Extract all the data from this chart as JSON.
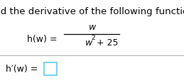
{
  "title": "Find the derivative of the following function.",
  "title_fontsize": 9.5,
  "background_color": "#ffffff",
  "hw_label": "h(w) =",
  "numerator": "w",
  "denominator_part1": "w",
  "denominator_sup": "2",
  "denominator_part2": " + 25",
  "derivative_label": "h′(w) =",
  "box_color": "#5bc8f5",
  "box_facecolor": "#ffffff",
  "separator_color": "#aaaaaa",
  "text_color": "#000000",
  "figwidth": 2.59,
  "figheight": 1.17,
  "dpi": 100
}
